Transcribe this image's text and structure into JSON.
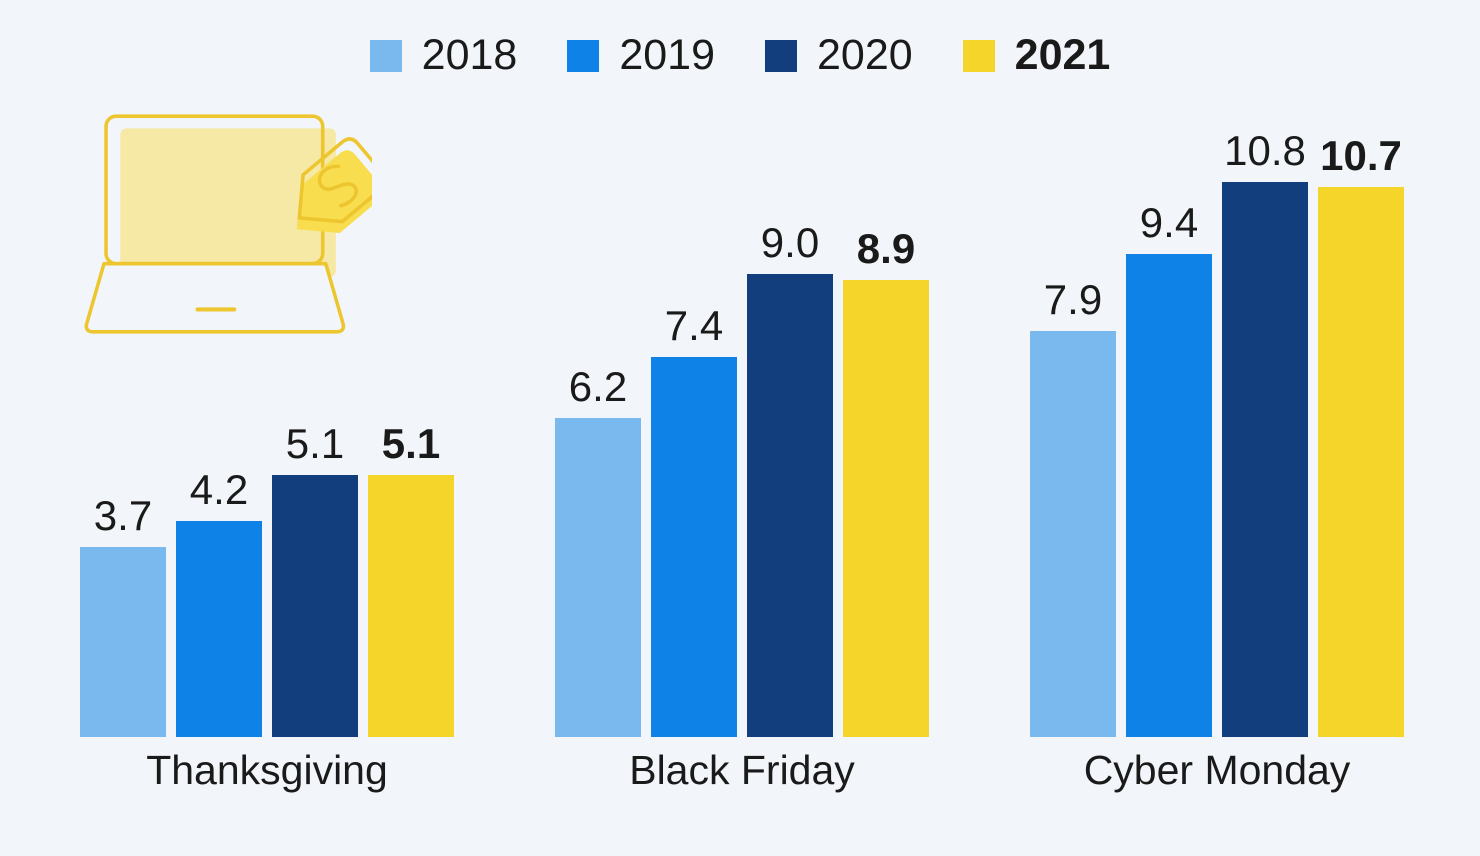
{
  "colors": {
    "background": "#f2f6fa",
    "text": "#1a1a1a"
  },
  "icon": {
    "name": "laptop-price-tag",
    "stroke": "#edc62f",
    "screen_fill": "#f6e9a6",
    "tag_fill": "#f8dd4f"
  },
  "chart_data": {
    "type": "bar",
    "categories": [
      "Thanksgiving",
      "Black Friday",
      "Cyber Monday"
    ],
    "series": [
      {
        "name": "2018",
        "color": "#7ab9ee",
        "values": [
          3.7,
          6.2,
          7.9
        ],
        "emphasis": false
      },
      {
        "name": "2019",
        "color": "#0e82e6",
        "values": [
          4.2,
          7.4,
          9.4
        ],
        "emphasis": false
      },
      {
        "name": "2020",
        "color": "#123e7d",
        "values": [
          5.1,
          9.0,
          10.8
        ],
        "emphasis": false
      },
      {
        "name": "2021",
        "color": "#f6d52b",
        "values": [
          5.1,
          8.9,
          10.7
        ],
        "emphasis": true
      }
    ],
    "value_label_decimals": 1,
    "ylim": [
      0,
      11.4
    ],
    "grid": false,
    "axes_shown": false,
    "legend_position": "top-center"
  }
}
